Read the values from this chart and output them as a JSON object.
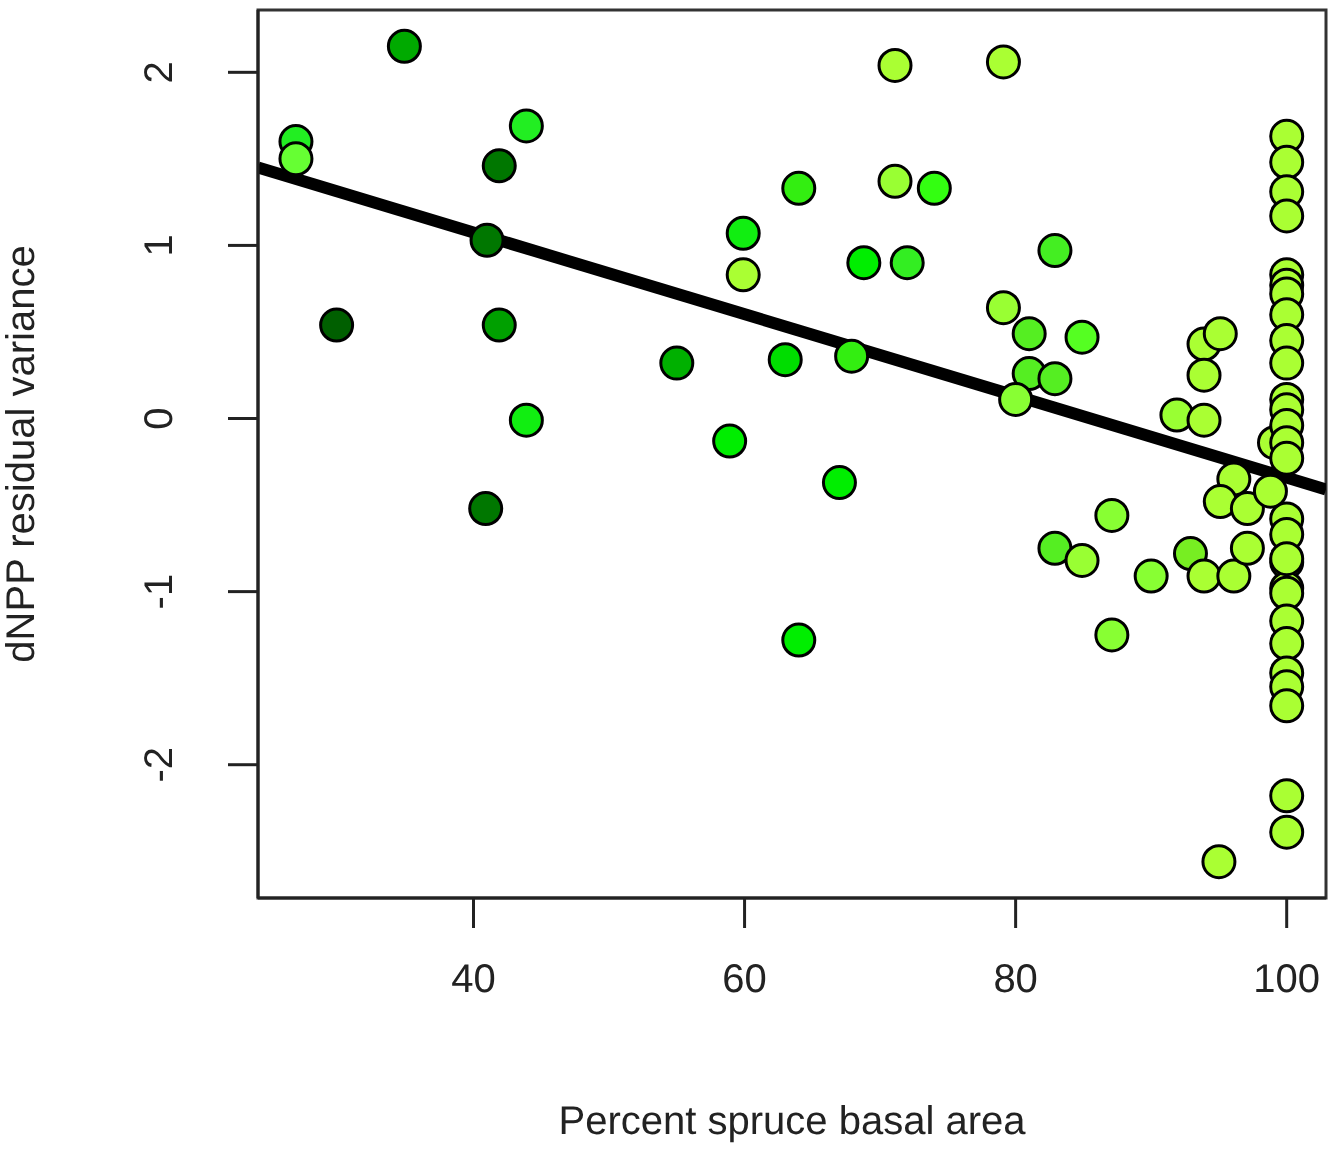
{
  "chart_data": {
    "type": "scatter",
    "xlabel": "Percent spruce basal area",
    "ylabel": "dNPP residual variance",
    "xlim": [
      24.1,
      102.9
    ],
    "ylim": [
      -2.77,
      2.36
    ],
    "xticks": [
      40,
      60,
      80,
      100
    ],
    "yticks": [
      -2,
      -1,
      0,
      1,
      2
    ],
    "marker": "circle",
    "series": [
      {
        "x": [
          34.9,
          26.9,
          26.9,
          43.9,
          41.9,
          41.0,
          29.9,
          41.9,
          43.9,
          40.9,
          55.0,
          58.9,
          59.9,
          59.9,
          63.0,
          64.0,
          71.1,
          79.1,
          71.1,
          74.0,
          68.8,
          72.0,
          82.9,
          79.1,
          81.0,
          84.9,
          67.9,
          81.0,
          82.9,
          80.0,
          93.9,
          95.1,
          93.9,
          91.9,
          93.9,
          67.0,
          87.1,
          82.9,
          84.9,
          90.0,
          92.9,
          93.9,
          96.1,
          97.1,
          96.1,
          95.1,
          97.1,
          99.1,
          98.8,
          100,
          100,
          100,
          100,
          100,
          100,
          100,
          100,
          100,
          100,
          100,
          100,
          100,
          100,
          100,
          100,
          100,
          100,
          100,
          100,
          100,
          100,
          100,
          100,
          100,
          100,
          100,
          100,
          95.0,
          87.1,
          64.0
        ],
        "values": [
          2.15,
          1.6,
          1.5,
          1.69,
          1.46,
          1.03,
          0.54,
          0.54,
          -0.01,
          -0.52,
          0.32,
          -0.13,
          1.07,
          0.83,
          0.34,
          1.33,
          2.04,
          2.06,
          1.37,
          1.33,
          0.9,
          0.9,
          0.97,
          0.64,
          0.49,
          0.47,
          0.36,
          0.26,
          0.23,
          0.11,
          0.43,
          0.49,
          0.25,
          0.02,
          -0.01,
          -0.37,
          -0.56,
          -0.75,
          -0.82,
          -0.91,
          -0.78,
          -0.91,
          -0.91,
          -0.75,
          -0.35,
          -0.48,
          -0.52,
          -0.14,
          -0.42,
          1.63,
          1.48,
          1.31,
          1.17,
          0.83,
          0.77,
          0.72,
          0.6,
          0.45,
          0.32,
          0.11,
          0.05,
          -0.04,
          -0.14,
          -0.23,
          -0.58,
          -0.67,
          -0.83,
          -0.98,
          -0.81,
          -1.01,
          -1.17,
          -1.3,
          -1.47,
          -1.55,
          -1.66,
          -2.18,
          -2.39,
          -2.56,
          -1.25,
          -1.28
        ],
        "colors": [
          "#00aa00",
          "#22ee22",
          "#66ff33",
          "#22ee22",
          "#007700",
          "#007700",
          "#005f00",
          "#00a000",
          "#11ee11",
          "#007700",
          "#00b000",
          "#00ee00",
          "#11ee11",
          "#aaff33",
          "#00dd00",
          "#33ee11",
          "#aaff33",
          "#aaff33",
          "#99ff33",
          "#33ff11",
          "#00ee00",
          "#33ee22",
          "#44ee22",
          "#99ff33",
          "#55ee22",
          "#55ff22",
          "#33ee11",
          "#55ee22",
          "#55ee22",
          "#88ff33",
          "#aaff33",
          "#aaff33",
          "#aaff33",
          "#99ff33",
          "#aaff33",
          "#00ee00",
          "#88ff33",
          "#55ee22",
          "#99ff33",
          "#88ff33",
          "#77ee22",
          "#aaff33",
          "#aaff33",
          "#aaff33",
          "#aaff33",
          "#aaff33",
          "#aaff33",
          "#aaff33",
          "#aaff33",
          "#aaff33",
          "#aaff33",
          "#aaff33",
          "#aaff33",
          "#aaff33",
          "#aaff33",
          "#aaff33",
          "#aaff33",
          "#aaff33",
          "#aaff33",
          "#aaff33",
          "#aaff33",
          "#aaff33",
          "#aaff33",
          "#aaff33",
          "#aaff33",
          "#aaff33",
          "#aaff33",
          "#aaff33",
          "#aaff33",
          "#aaff33",
          "#aaff33",
          "#aaff33",
          "#aaff33",
          "#aaff33",
          "#aaff33",
          "#aaff33",
          "#aaff33",
          "#aaff33",
          "#88ff33",
          "#00ee00"
        ]
      },
      {
        "type": "line",
        "marker": "none",
        "color": "#000000",
        "line_style": "solid",
        "x": [
          24.1,
          102.9
        ],
        "values": [
          1.45,
          -0.41
        ]
      }
    ]
  }
}
